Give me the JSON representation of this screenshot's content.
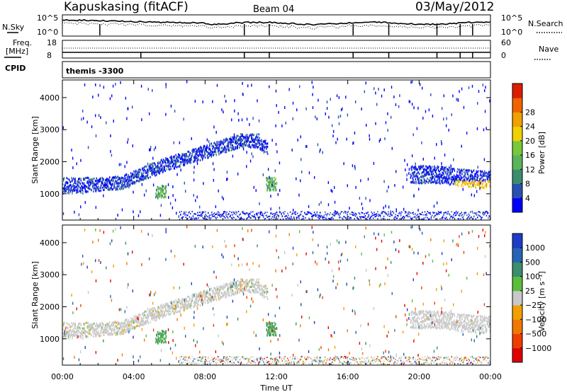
{
  "header": {
    "station": "Kapuskasing (fitACF)",
    "beam": "Beam 04",
    "date": "03/May/2012"
  },
  "top_panels": {
    "nsky": {
      "label": "N.Sky",
      "ticks": [
        "10^5",
        "10^0"
      ]
    },
    "nsearch": {
      "label": "N.Search",
      "ticks": [
        "10^5",
        "10^0"
      ]
    },
    "freq": {
      "label_line1": "Freq.",
      "label_line2": "[MHz]",
      "ticks": [
        "18",
        "8"
      ]
    },
    "nave": {
      "label": "Nave",
      "ticks": [
        "60",
        "0"
      ]
    },
    "cpid": {
      "label": "CPID",
      "value": "themis -3300"
    }
  },
  "chart_data": [
    {
      "type": "heatmap",
      "name": "power",
      "ylabel": "Slant Range [km]",
      "xlabel": "",
      "x_ticks": [
        "00:00",
        "04:00",
        "08:00",
        "12:00",
        "16:00",
        "20:00",
        "00:00"
      ],
      "x_range_hours": [
        0,
        24
      ],
      "y_ticks": [
        1000,
        2000,
        3000,
        4000
      ],
      "ylim": [
        180,
        4550
      ],
      "colorbar": {
        "label": "Power [dB]",
        "ticks": [
          "4",
          "8",
          "12",
          "16",
          "20",
          "24",
          "28"
        ],
        "range": [
          0,
          30
        ],
        "colors": [
          "#0000ff",
          "#2850b4",
          "#3c8c6e",
          "#5ab45a",
          "#78c83c",
          "#f0d000",
          "#f0a000",
          "#f06400",
          "#dc1e00"
        ]
      }
    },
    {
      "type": "heatmap",
      "name": "velocity",
      "ylabel": "Slant Range [km]",
      "xlabel": "Time UT",
      "x_ticks": [
        "00:00",
        "04:00",
        "08:00",
        "12:00",
        "16:00",
        "20:00",
        "00:00"
      ],
      "x_range_hours": [
        0,
        24
      ],
      "y_ticks": [
        1000,
        2000,
        3000,
        4000
      ],
      "ylim": [
        180,
        4550
      ],
      "colorbar": {
        "label": "Velocity [m s⁻¹]",
        "ticks": [
          "1000",
          "500",
          "100",
          "25",
          "−25",
          "−100",
          "−500",
          "−1000"
        ],
        "colors": [
          "#1e3cc8",
          "#2864b4",
          "#3c8c6e",
          "#5abe3c",
          "#c8c8c8",
          "#f0a000",
          "#f07800",
          "#f03c00",
          "#e00000"
        ]
      }
    }
  ]
}
